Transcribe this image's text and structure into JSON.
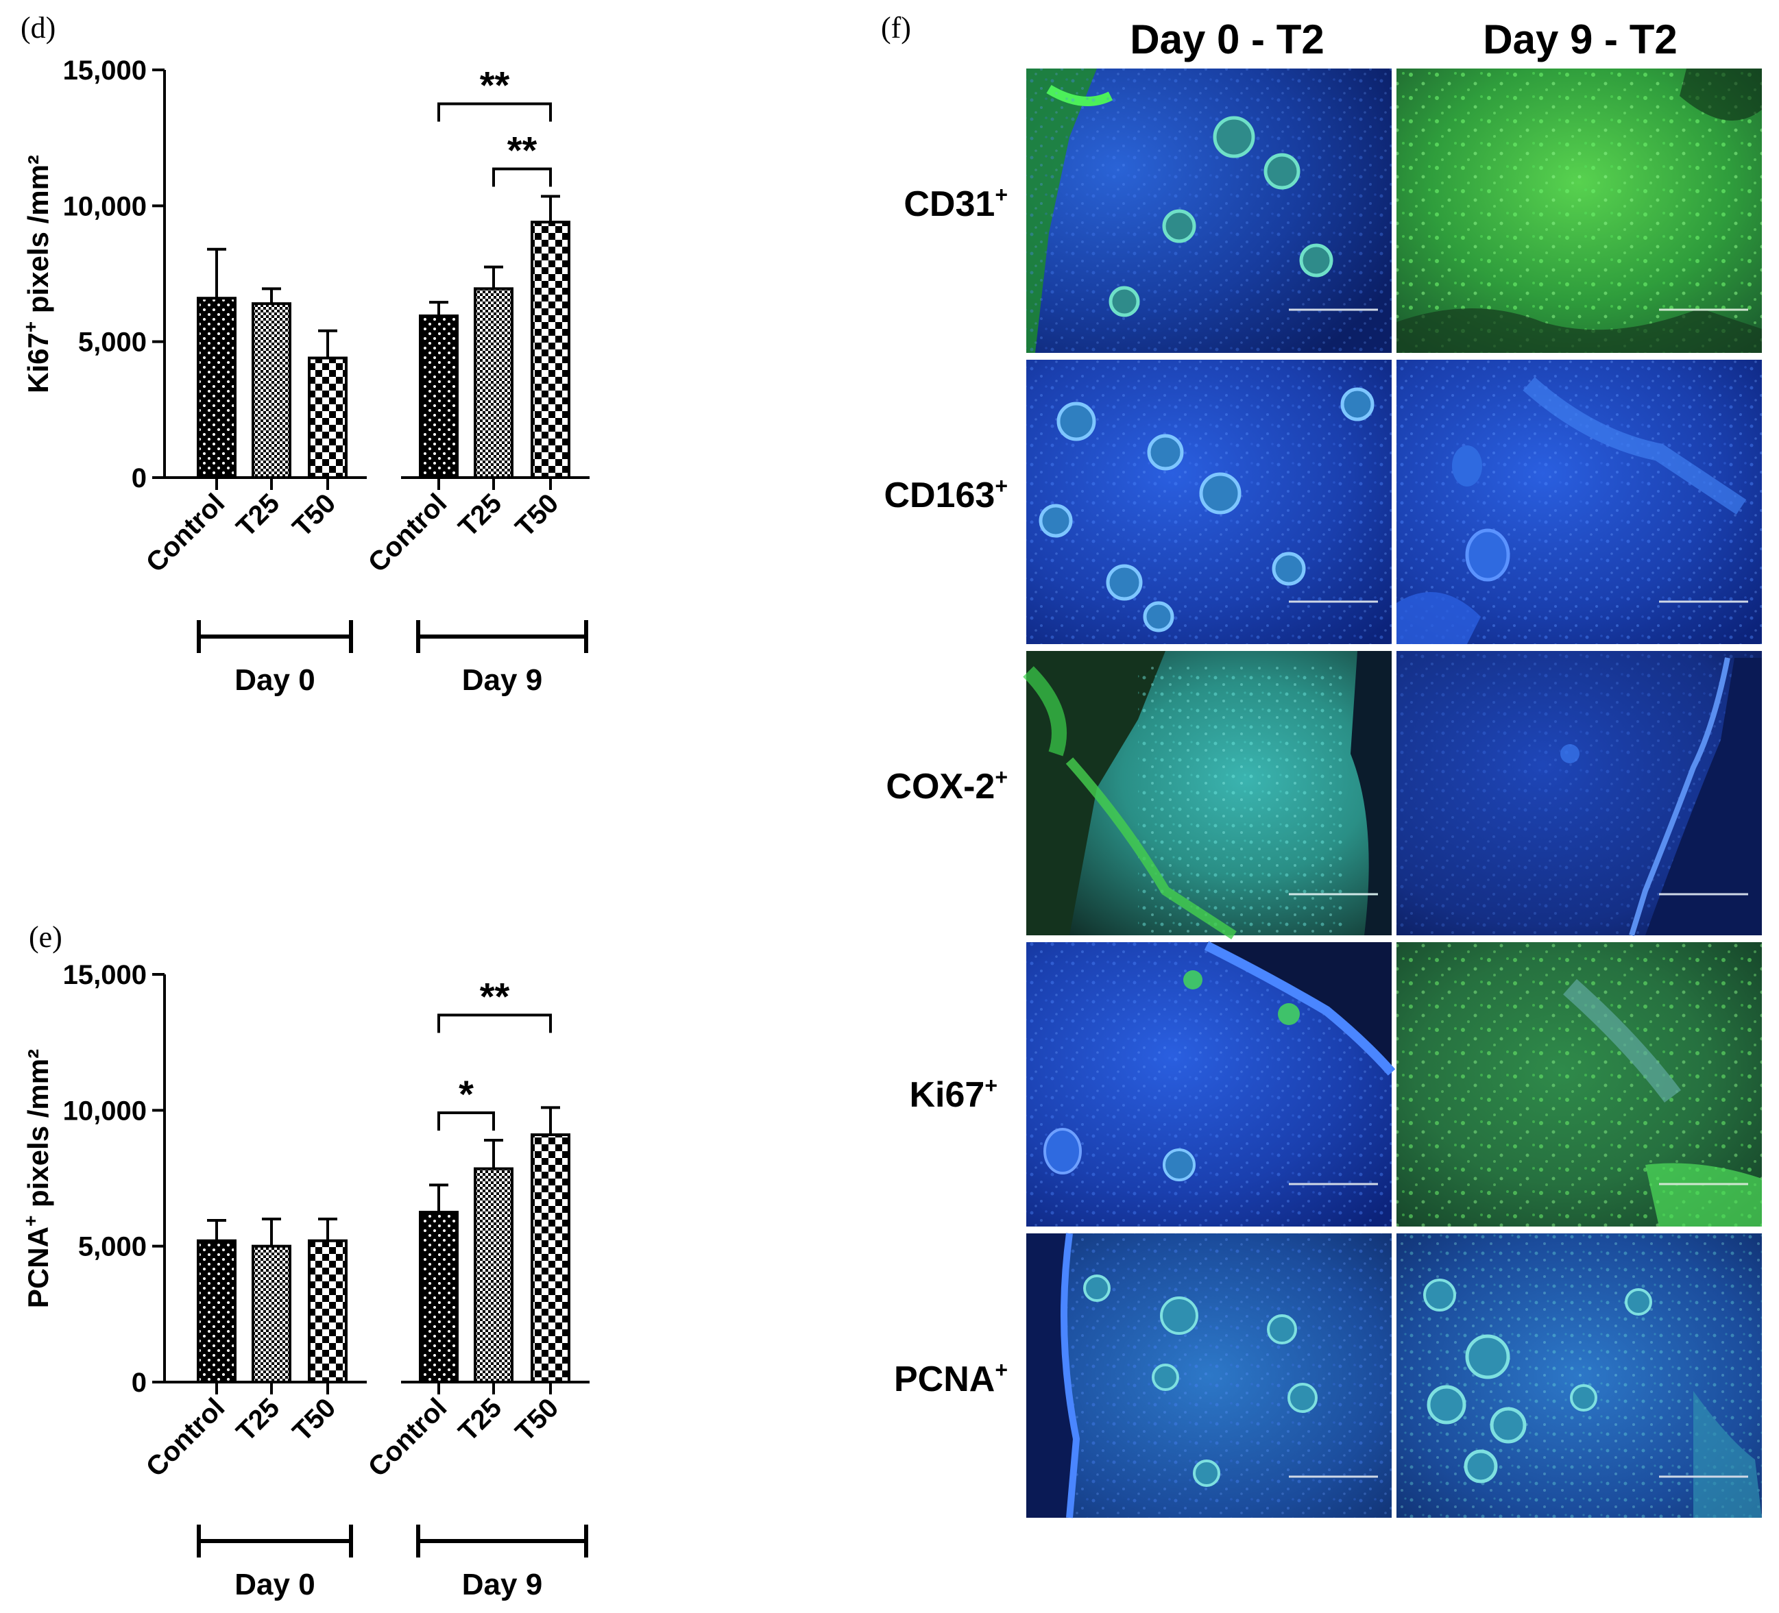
{
  "chart_data": [
    {
      "panel": "(d)",
      "type": "bar",
      "ylabel_main": "Ki67",
      "ylabel_sup": "+",
      "ylabel_rest": "pixels /mm²",
      "ylim": [
        0,
        15000
      ],
      "yticks": [
        "0",
        "5,000",
        "10,000",
        "15,000"
      ],
      "ytick_values": [
        0,
        5000,
        10000,
        15000
      ],
      "groups": [
        "Day 0",
        "Day 9"
      ],
      "categories": [
        "Control",
        "T25",
        "T50"
      ],
      "bars": [
        {
          "group": "Day 0",
          "category": "Control",
          "value": 6600,
          "error": 1800,
          "pattern": "dots"
        },
        {
          "group": "Day 0",
          "category": "T25",
          "value": 6400,
          "error": 550,
          "pattern": "fine"
        },
        {
          "group": "Day 0",
          "category": "T50",
          "value": 4400,
          "error": 1000,
          "pattern": "checker"
        },
        {
          "group": "Day 9",
          "category": "Control",
          "value": 5950,
          "error": 500,
          "pattern": "dots"
        },
        {
          "group": "Day 9",
          "category": "T25",
          "value": 6950,
          "error": 800,
          "pattern": "fine"
        },
        {
          "group": "Day 9",
          "category": "T50",
          "value": 9400,
          "error": 950,
          "pattern": "checker"
        }
      ],
      "significance": [
        {
          "from": 3,
          "to": 5,
          "label": "**"
        },
        {
          "from": 4,
          "to": 5,
          "label": "**"
        }
      ]
    },
    {
      "panel": "(e)",
      "type": "bar",
      "ylabel_main": "PCNA",
      "ylabel_sup": "+",
      "ylabel_rest": "pixels /mm²",
      "ylim": [
        0,
        15000
      ],
      "yticks": [
        "0",
        "5,000",
        "10,000",
        "15,000"
      ],
      "ytick_values": [
        0,
        5000,
        10000,
        15000
      ],
      "groups": [
        "Day 0",
        "Day 9"
      ],
      "categories": [
        "Control",
        "T25",
        "T50"
      ],
      "bars": [
        {
          "group": "Day 0",
          "category": "Control",
          "value": 5200,
          "error": 750,
          "pattern": "dots"
        },
        {
          "group": "Day 0",
          "category": "T25",
          "value": 5000,
          "error": 1000,
          "pattern": "fine"
        },
        {
          "group": "Day 0",
          "category": "T50",
          "value": 5200,
          "error": 800,
          "pattern": "checker"
        },
        {
          "group": "Day 9",
          "category": "Control",
          "value": 6250,
          "error": 1000,
          "pattern": "dots"
        },
        {
          "group": "Day 9",
          "category": "T25",
          "value": 7850,
          "error": 1050,
          "pattern": "fine"
        },
        {
          "group": "Day 9",
          "category": "T50",
          "value": 9100,
          "error": 1000,
          "pattern": "checker"
        }
      ],
      "significance": [
        {
          "from": 3,
          "to": 5,
          "label": "**"
        },
        {
          "from": 3,
          "to": 4,
          "label": "*"
        }
      ]
    }
  ],
  "micrographs": {
    "panel": "(f)",
    "columns": [
      "Day 0 - T2",
      "Day 9 - T2"
    ],
    "rows": [
      {
        "main": "CD31",
        "sup": "+"
      },
      {
        "main": "CD163",
        "sup": "+"
      },
      {
        "main": "COX-2",
        "sup": "+"
      },
      {
        "main": "Ki67",
        "sup": "+"
      },
      {
        "main": "PCNA",
        "sup": "+"
      }
    ],
    "image_colors": {
      "nuclear_stain": "#1f4fd8",
      "marker_stain": "#3ddc4a",
      "tissue_dark": "#0a1a55"
    }
  }
}
